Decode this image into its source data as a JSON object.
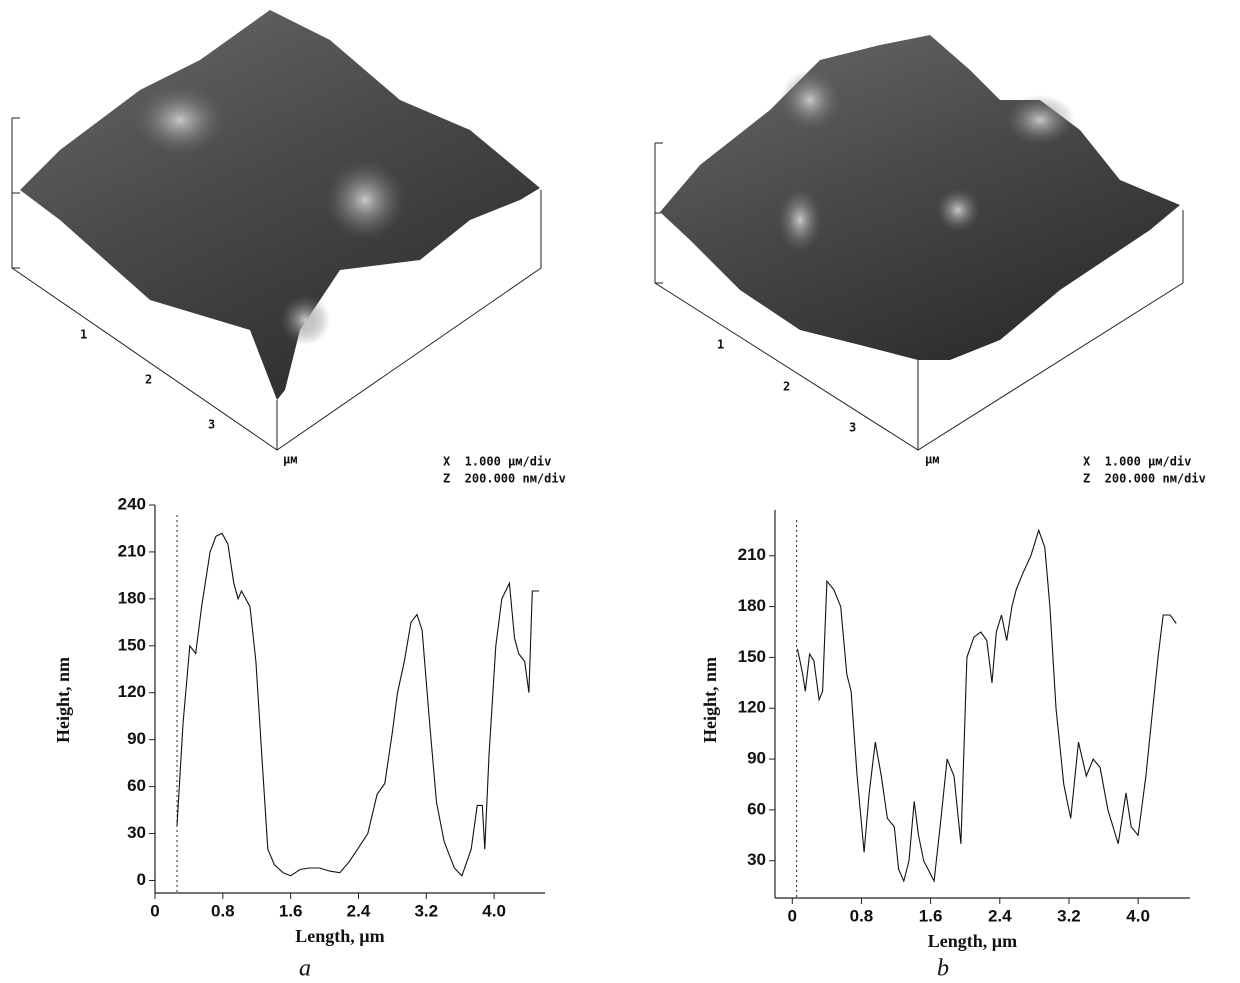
{
  "surfaces": [
    {
      "ticks": [
        "1",
        "2",
        "3"
      ],
      "unit": "μм",
      "scale_x": "X  1.000 μм/div",
      "scale_z": "Z  200.000 nм/div"
    },
    {
      "ticks": [
        "1",
        "2",
        "3"
      ],
      "unit": "μм",
      "scale_x": "X  1.000 μм/div",
      "scale_z": "Z  200.000 nм/div"
    }
  ],
  "chart_data": [
    {
      "type": "line",
      "label": "a",
      "x_label": "Length, µm",
      "y_label": "Height, nm",
      "xlim": [
        0,
        4.6
      ],
      "ylim": [
        -8,
        240
      ],
      "xticks": [
        0,
        0.8,
        1.6,
        2.4,
        3.2,
        {
          "value": 4,
          "label": "4.0"
        }
      ],
      "yticks": [
        0,
        30,
        60,
        90,
        120,
        150,
        180,
        210,
        240
      ],
      "marker_x": 0.26,
      "grid": false,
      "series": [
        {
          "color": "#111111",
          "x": [
            0.26,
            0.33,
            0.41,
            0.48,
            0.55,
            0.65,
            0.72,
            0.79,
            0.86,
            0.93,
            0.98,
            1.02,
            1.12,
            1.19,
            1.26,
            1.33,
            1.41,
            1.51,
            1.6,
            1.71,
            1.82,
            1.94,
            2.06,
            2.18,
            2.29,
            2.39,
            2.51,
            2.62,
            2.71,
            2.8,
            2.86,
            2.94,
            3.02,
            3.09,
            3.15,
            3.24,
            3.32,
            3.41,
            3.53,
            3.62,
            3.73,
            3.8,
            3.86,
            3.89,
            3.94,
            4.02,
            4.09,
            4.18,
            4.24,
            4.29,
            4.36,
            4.41,
            4.45,
            4.53
          ],
          "values": [
            35,
            100,
            150,
            145,
            175,
            210,
            220,
            222,
            215,
            190,
            180,
            185,
            175,
            140,
            80,
            20,
            10,
            5,
            3,
            7,
            8,
            8,
            6,
            5,
            12,
            20,
            30,
            55,
            62,
            95,
            120,
            140,
            165,
            170,
            160,
            100,
            50,
            25,
            8,
            3,
            20,
            48,
            48,
            20,
            80,
            150,
            180,
            190,
            155,
            145,
            140,
            120,
            185,
            185
          ]
        }
      ]
    },
    {
      "type": "line",
      "label": "b",
      "x_label": "Length, µm",
      "y_label": "Height, nm",
      "xlim": [
        -0.2,
        4.6
      ],
      "ylim": [
        8,
        237
      ],
      "xticks": [
        0,
        0.8,
        1.6,
        2.4,
        3.2,
        {
          "value": 4,
          "label": "4.0"
        }
      ],
      "yticks": [
        30,
        60,
        90,
        120,
        150,
        180,
        210
      ],
      "marker_x": 0.05,
      "grid": false,
      "series": [
        {
          "color": "#111111",
          "x": [
            0.06,
            0.12,
            0.15,
            0.2,
            0.25,
            0.31,
            0.35,
            0.4,
            0.48,
            0.56,
            0.63,
            0.68,
            0.75,
            0.83,
            0.89,
            0.96,
            1.03,
            1.1,
            1.18,
            1.23,
            1.29,
            1.35,
            1.41,
            1.46,
            1.52,
            1.64,
            1.72,
            1.79,
            1.87,
            1.95,
            2.02,
            2.1,
            2.18,
            2.25,
            2.31,
            2.36,
            2.42,
            2.48,
            2.54,
            2.59,
            2.67,
            2.76,
            2.85,
            2.92,
            2.98,
            3.05,
            3.14,
            3.22,
            3.31,
            3.4,
            3.48,
            3.56,
            3.65,
            3.77,
            3.86,
            3.92,
            4.0,
            4.09,
            4.17,
            4.23,
            4.29,
            4.37,
            4.44
          ],
          "values": [
            155,
            140,
            130,
            152,
            148,
            125,
            130,
            195,
            190,
            180,
            140,
            130,
            80,
            35,
            70,
            100,
            80,
            55,
            50,
            25,
            18,
            30,
            65,
            45,
            30,
            18,
            55,
            90,
            80,
            40,
            150,
            162,
            165,
            160,
            135,
            165,
            175,
            160,
            180,
            190,
            200,
            210,
            225,
            215,
            180,
            120,
            75,
            55,
            100,
            80,
            90,
            85,
            60,
            40,
            70,
            50,
            45,
            80,
            120,
            150,
            175,
            175,
            170
          ]
        }
      ]
    }
  ]
}
